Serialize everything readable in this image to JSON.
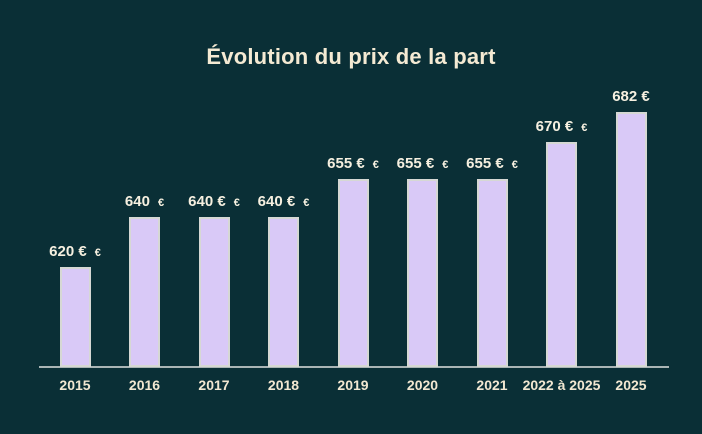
{
  "chart_data": {
    "type": "bar",
    "title": "Évolution du prix de la part",
    "categories": [
      "2015",
      "2016",
      "2017",
      "2018",
      "2019",
      "2020",
      "2021",
      "2022 à 2025",
      "2025"
    ],
    "values": [
      620,
      640,
      640,
      640,
      655,
      655,
      655,
      670,
      682
    ],
    "bar_labels": [
      "620 €",
      "640",
      "640 €",
      "640 €",
      "655 €",
      "655 €",
      "655 €",
      "670 €",
      "682 €"
    ],
    "bar_label_suffixes": [
      "€",
      "€",
      "€",
      "€",
      "€",
      "€",
      "€",
      "€",
      ""
    ],
    "unit": "€",
    "xlabel": "",
    "ylabel": "",
    "ylim": [
      580,
      690
    ],
    "grid": false,
    "legend": false,
    "colors": {
      "background": "#0a2f36",
      "bar_fill": "#d9c9f7",
      "bar_border": "#d6d8d4",
      "axis_line": "#c7cdcb",
      "title_text": "#f4ead3",
      "bar_label_text": "#f6f0e0",
      "tick_text": "#f2e8d2"
    }
  }
}
